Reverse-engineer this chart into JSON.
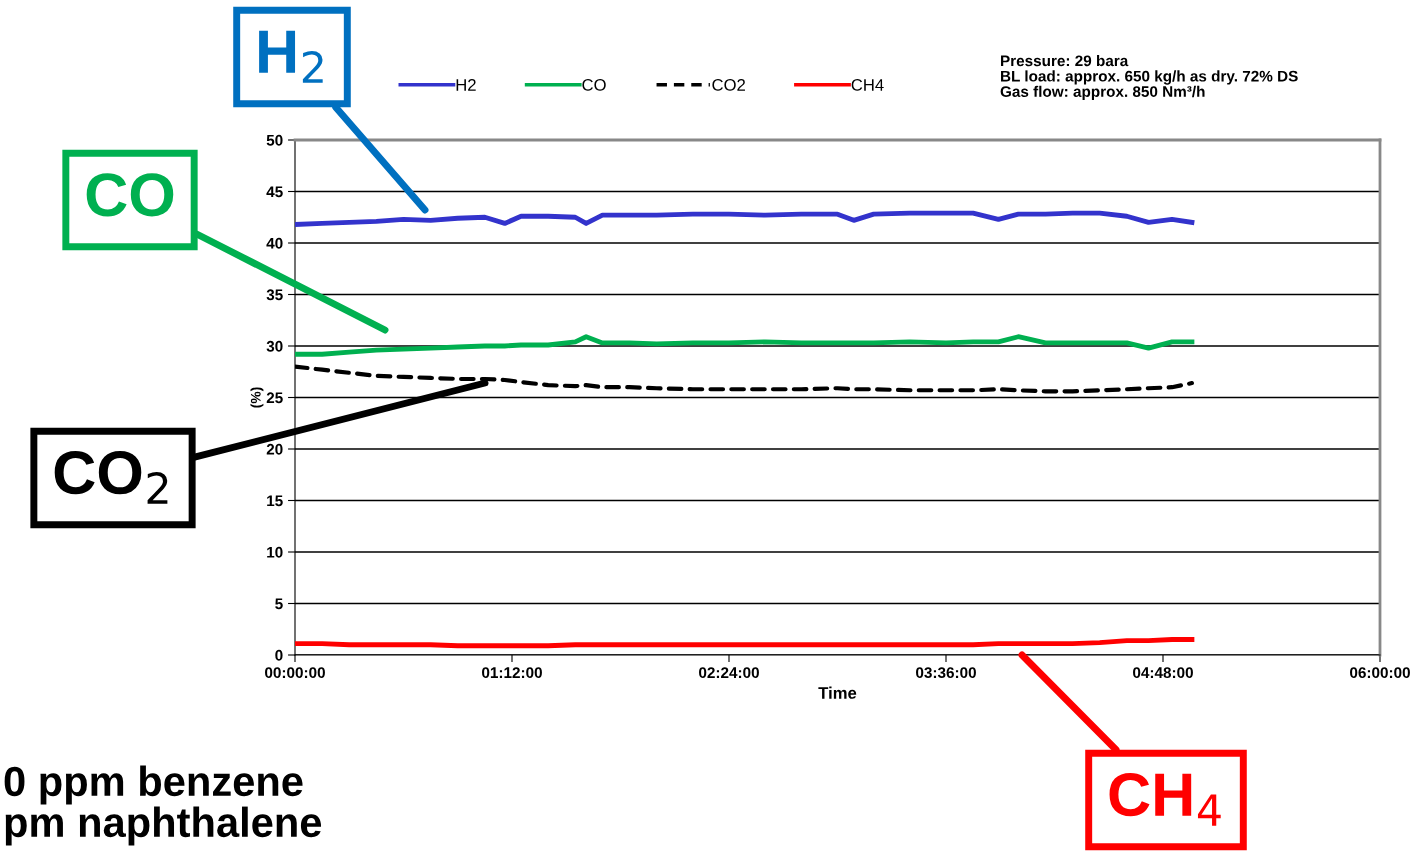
{
  "chart_data": {
    "type": "line",
    "xlabel": "Time",
    "ylabel": "(%)",
    "x": [
      0,
      0.15,
      0.3,
      0.45,
      0.6,
      0.75,
      0.9,
      1.05,
      1.16,
      1.25,
      1.4,
      1.55,
      1.61,
      1.7,
      1.85,
      2.0,
      2.2,
      2.4,
      2.6,
      2.8,
      3.0,
      3.09,
      3.2,
      3.4,
      3.6,
      3.75,
      3.89,
      4.0,
      4.15,
      4.3,
      4.45,
      4.6,
      4.72,
      4.85,
      4.96
    ],
    "series": [
      {
        "name": "H2",
        "color": "#3333cc",
        "line_style": "solid",
        "values": [
          41.8,
          41.9,
          42.0,
          42.1,
          42.3,
          42.2,
          42.4,
          42.5,
          41.9,
          42.6,
          42.6,
          42.5,
          41.9,
          42.7,
          42.7,
          42.7,
          42.8,
          42.8,
          42.7,
          42.8,
          42.8,
          42.2,
          42.8,
          42.9,
          42.9,
          42.9,
          42.3,
          42.8,
          42.8,
          42.9,
          42.9,
          42.6,
          42.0,
          42.3,
          42.0
        ]
      },
      {
        "name": "CO",
        "color": "#00b050",
        "line_style": "solid",
        "values": [
          29.2,
          29.2,
          29.4,
          29.6,
          29.7,
          29.8,
          29.9,
          30.0,
          30.0,
          30.1,
          30.1,
          30.4,
          30.9,
          30.3,
          30.3,
          30.2,
          30.3,
          30.3,
          30.4,
          30.3,
          30.3,
          30.3,
          30.3,
          30.4,
          30.3,
          30.4,
          30.4,
          30.9,
          30.3,
          30.3,
          30.3,
          30.3,
          29.8,
          30.4,
          30.4
        ]
      },
      {
        "name": "CO2",
        "color": "#000000",
        "line_style": "dashed",
        "values": [
          28.0,
          27.7,
          27.4,
          27.1,
          27.0,
          26.9,
          26.8,
          26.8,
          26.7,
          26.5,
          26.2,
          26.1,
          26.2,
          26.0,
          26.0,
          25.9,
          25.8,
          25.8,
          25.8,
          25.8,
          25.9,
          25.8,
          25.8,
          25.7,
          25.7,
          25.7,
          25.8,
          25.7,
          25.6,
          25.6,
          25.7,
          25.8,
          25.9,
          26.0,
          26.4
        ]
      },
      {
        "name": "CH4",
        "color": "#ff0000",
        "line_style": "solid",
        "values": [
          1.1,
          1.1,
          1.0,
          1.0,
          1.0,
          1.0,
          0.9,
          0.9,
          0.9,
          0.9,
          0.9,
          1.0,
          1.0,
          1.0,
          1.0,
          1.0,
          1.0,
          1.0,
          1.0,
          1.0,
          1.0,
          1.0,
          1.0,
          1.0,
          1.0,
          1.0,
          1.1,
          1.1,
          1.1,
          1.1,
          1.2,
          1.4,
          1.4,
          1.5,
          1.5
        ]
      }
    ],
    "xlim": [
      0,
      6
    ],
    "xticks": [
      {
        "value": 0,
        "label": "00:00:00"
      },
      {
        "value": 1.2,
        "label": "01:12:00"
      },
      {
        "value": 2.4,
        "label": "02:24:00"
      },
      {
        "value": 3.6,
        "label": "03:36:00"
      },
      {
        "value": 4.8,
        "label": "04:48:00"
      },
      {
        "value": 6,
        "label": "06:00:00"
      }
    ],
    "ylim": [
      0,
      50
    ],
    "yticks": [
      0,
      5,
      10,
      15,
      20,
      25,
      30,
      35,
      40,
      45,
      50
    ],
    "grid": "y",
    "legend": "top",
    "marker": "none",
    "annotations": [
      "H$_{2}$",
      "CO",
      "CO$_{2}$",
      "CH$_{4}$",
      "Pressure: 29 bara\nBL load: approx. 650 kg/h as dry. 72% DS\nGas flow: approx. 850 Nm³/h",
      "0 ppm benzene",
      "pm naphthalene"
    ]
  }
}
